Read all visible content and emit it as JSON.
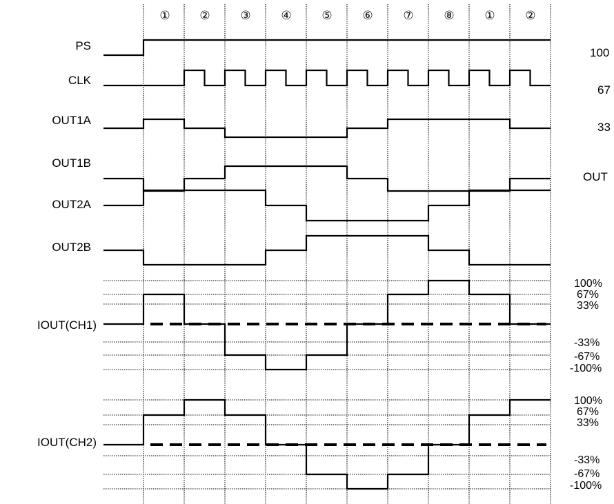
{
  "steps": [
    "①",
    "②",
    "③",
    "④",
    "⑤",
    "⑥",
    "⑦",
    "⑧",
    "①",
    "②"
  ],
  "signals": [
    {
      "id": "ps",
      "label": "PS",
      "levels": [
        0,
        1,
        1,
        1,
        1,
        1,
        1,
        1,
        1,
        1,
        1
      ]
    },
    {
      "id": "clk",
      "label": "CLK"
    },
    {
      "id": "out1a",
      "label": "OUT1A",
      "levels": [
        0,
        1,
        0,
        -1,
        -1,
        -1,
        0,
        1,
        1,
        1,
        0
      ]
    },
    {
      "id": "out1b",
      "label": "OUT1B",
      "levels": [
        0,
        -1,
        0,
        1,
        1,
        1,
        0,
        -1,
        -1,
        -1,
        0
      ]
    },
    {
      "id": "out2a",
      "label": "OUT2A",
      "levels": [
        0,
        1,
        1,
        1,
        0,
        -1,
        -1,
        -1,
        0,
        1,
        1
      ]
    },
    {
      "id": "out2b",
      "label": "OUT2B",
      "levels": [
        0,
        -1,
        -1,
        -1,
        0,
        1,
        1,
        1,
        0,
        -1,
        -1
      ]
    }
  ],
  "currents": [
    {
      "id": "iout-ch1",
      "label": "IOUT(CH1)",
      "levels": [
        0,
        2,
        0,
        -2,
        -3,
        -2,
        0,
        2,
        3,
        2,
        0
      ]
    },
    {
      "id": "iout-ch2",
      "label": "IOUT(CH2)",
      "levels": [
        0,
        2,
        3,
        2,
        0,
        -2,
        -3,
        -2,
        0,
        2,
        3
      ]
    }
  ],
  "scale_labels": {
    "positive": [
      "100%",
      "67%",
      "33%"
    ],
    "negative": [
      "-33%",
      "-67%",
      "-100%"
    ]
  },
  "cut_labels": [
    "100",
    "67",
    "33",
    "OUT"
  ]
}
